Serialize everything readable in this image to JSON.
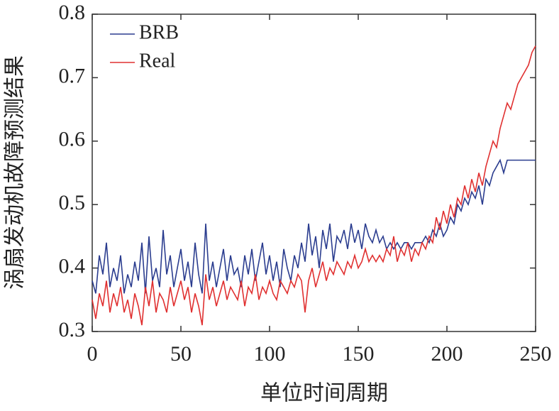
{
  "chart_data": {
    "type": "line",
    "xlabel": "单位时间周期",
    "ylabel": "涡扇发动机故障预测结果",
    "x": [
      0,
      2,
      4,
      6,
      8,
      10,
      12,
      14,
      16,
      18,
      20,
      22,
      24,
      26,
      28,
      30,
      32,
      34,
      36,
      38,
      40,
      42,
      44,
      46,
      48,
      50,
      52,
      54,
      56,
      58,
      60,
      62,
      64,
      66,
      68,
      70,
      72,
      74,
      76,
      78,
      80,
      82,
      84,
      86,
      88,
      90,
      92,
      94,
      96,
      98,
      100,
      102,
      104,
      106,
      108,
      110,
      112,
      114,
      116,
      118,
      120,
      122,
      124,
      126,
      128,
      130,
      132,
      134,
      136,
      138,
      140,
      142,
      144,
      146,
      148,
      150,
      152,
      154,
      156,
      158,
      160,
      162,
      164,
      166,
      168,
      170,
      172,
      174,
      176,
      178,
      180,
      182,
      184,
      186,
      188,
      190,
      192,
      194,
      196,
      198,
      200,
      202,
      204,
      206,
      208,
      210,
      212,
      214,
      216,
      218,
      220,
      222,
      224,
      226,
      228,
      230,
      232,
      234,
      236,
      238,
      240,
      242,
      244,
      246,
      248,
      250
    ],
    "series": [
      {
        "name": "BRB",
        "color": "#2b3d8f",
        "values": [
          0.38,
          0.36,
          0.42,
          0.39,
          0.44,
          0.37,
          0.4,
          0.38,
          0.42,
          0.36,
          0.39,
          0.37,
          0.41,
          0.38,
          0.44,
          0.36,
          0.45,
          0.38,
          0.4,
          0.37,
          0.46,
          0.39,
          0.42,
          0.37,
          0.4,
          0.43,
          0.38,
          0.41,
          0.37,
          0.44,
          0.39,
          0.36,
          0.47,
          0.38,
          0.41,
          0.37,
          0.4,
          0.43,
          0.38,
          0.42,
          0.39,
          0.4,
          0.37,
          0.42,
          0.39,
          0.43,
          0.38,
          0.41,
          0.44,
          0.39,
          0.42,
          0.38,
          0.41,
          0.37,
          0.43,
          0.4,
          0.38,
          0.42,
          0.4,
          0.44,
          0.41,
          0.47,
          0.42,
          0.45,
          0.4,
          0.46,
          0.43,
          0.47,
          0.41,
          0.45,
          0.44,
          0.46,
          0.43,
          0.47,
          0.44,
          0.46,
          0.43,
          0.47,
          0.45,
          0.44,
          0.46,
          0.44,
          0.45,
          0.43,
          0.44,
          0.43,
          0.44,
          0.43,
          0.44,
          0.44,
          0.43,
          0.44,
          0.44,
          0.44,
          0.45,
          0.44,
          0.46,
          0.45,
          0.47,
          0.45,
          0.46,
          0.48,
          0.47,
          0.5,
          0.49,
          0.51,
          0.5,
          0.52,
          0.51,
          0.53,
          0.5,
          0.54,
          0.53,
          0.55,
          0.56,
          0.57,
          0.55,
          0.57,
          0.57,
          0.57,
          0.57,
          0.57,
          0.57,
          0.57,
          0.57,
          0.57
        ]
      },
      {
        "name": "Real",
        "color": "#e03030",
        "values": [
          0.35,
          0.32,
          0.36,
          0.34,
          0.38,
          0.33,
          0.36,
          0.34,
          0.37,
          0.33,
          0.35,
          0.32,
          0.36,
          0.34,
          0.31,
          0.37,
          0.34,
          0.38,
          0.33,
          0.36,
          0.35,
          0.33,
          0.37,
          0.34,
          0.36,
          0.38,
          0.35,
          0.37,
          0.33,
          0.36,
          0.34,
          0.31,
          0.39,
          0.35,
          0.37,
          0.34,
          0.36,
          0.38,
          0.35,
          0.37,
          0.36,
          0.35,
          0.38,
          0.34,
          0.37,
          0.36,
          0.39,
          0.35,
          0.37,
          0.36,
          0.38,
          0.36,
          0.35,
          0.38,
          0.37,
          0.36,
          0.38,
          0.37,
          0.39,
          0.38,
          0.33,
          0.38,
          0.4,
          0.37,
          0.39,
          0.41,
          0.38,
          0.4,
          0.39,
          0.41,
          0.4,
          0.39,
          0.41,
          0.4,
          0.42,
          0.4,
          0.41,
          0.43,
          0.41,
          0.42,
          0.41,
          0.42,
          0.41,
          0.43,
          0.42,
          0.45,
          0.41,
          0.43,
          0.42,
          0.44,
          0.41,
          0.43,
          0.42,
          0.44,
          0.43,
          0.45,
          0.44,
          0.48,
          0.46,
          0.49,
          0.47,
          0.5,
          0.48,
          0.51,
          0.5,
          0.53,
          0.51,
          0.54,
          0.52,
          0.55,
          0.53,
          0.56,
          0.58,
          0.6,
          0.59,
          0.62,
          0.64,
          0.66,
          0.65,
          0.67,
          0.69,
          0.7,
          0.71,
          0.72,
          0.74,
          0.75
        ]
      }
    ],
    "xlim": [
      0,
      250
    ],
    "xticks": [
      0,
      50,
      100,
      150,
      200,
      250
    ],
    "ylim": [
      0.3,
      0.8
    ],
    "yticks": [
      0.3,
      0.4,
      0.5,
      0.6,
      0.7,
      0.8
    ],
    "legend": "upper left"
  }
}
